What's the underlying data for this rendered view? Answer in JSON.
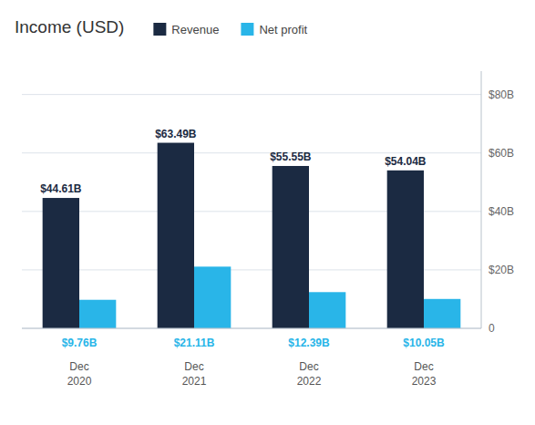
{
  "chart_data": {
    "type": "bar",
    "title": "Income (USD)",
    "categories": [
      "Dec\n2020",
      "Dec\n2021",
      "Dec\n2022",
      "Dec\n2023"
    ],
    "series": [
      {
        "name": "Revenue",
        "color": "#1b2a42",
        "values": [
          44.61,
          63.49,
          55.55,
          54.04
        ],
        "value_labels": [
          "$44.61B",
          "$63.49B",
          "$55.55B",
          "$54.04B"
        ]
      },
      {
        "name": "Net profit",
        "color": "#29b5e8",
        "values": [
          9.76,
          21.11,
          12.39,
          10.05
        ],
        "value_labels": [
          "$9.76B",
          "$21.11B",
          "$12.39B",
          "$10.05B"
        ]
      }
    ],
    "ylim": [
      0,
      88
    ],
    "yticks": [
      0,
      {
        "value": 20,
        "label": "$20B"
      },
      {
        "value": 40,
        "label": "$40B"
      },
      {
        "value": 60,
        "label": "$60B"
      },
      {
        "value": 80,
        "label": "$80B"
      }
    ],
    "grid": true,
    "legend": "top",
    "data_labels": true
  }
}
